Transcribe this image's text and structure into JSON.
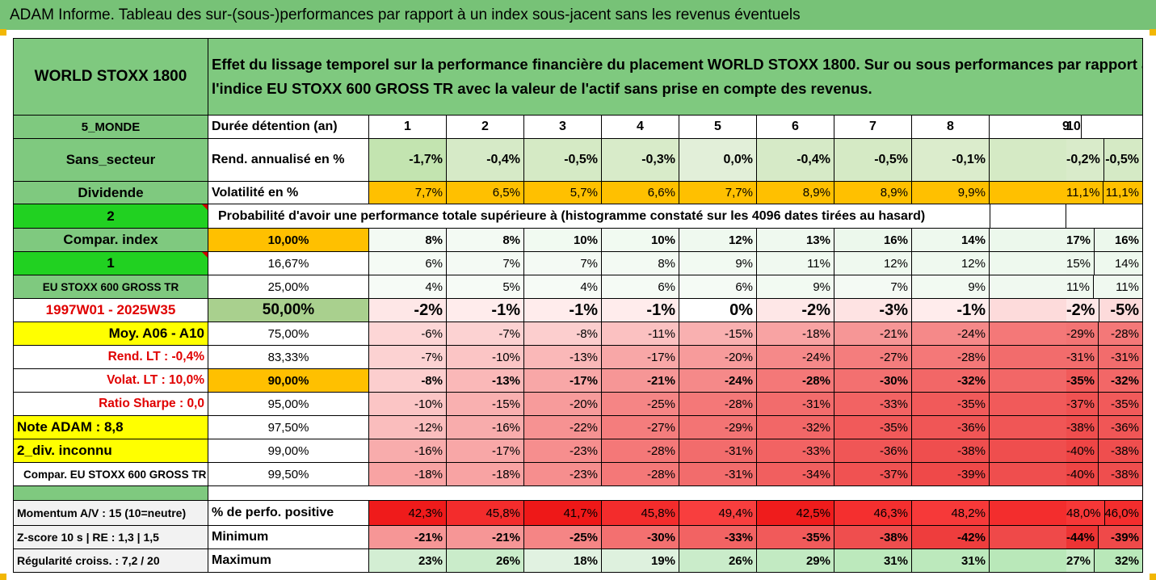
{
  "title": "ADAM Informe. Tableau des sur-(sous-)performances par rapport à un index sous-jacent sans les revenus éventuels",
  "header": {
    "asset_name": "WORLD STOXX 1800",
    "description_line1": "Effet du lissage temporel sur la performance financière du placement WORLD STOXX 1800. Sur ou sous performances par rapport à",
    "description_line2": "l'indice EU STOXX 600 GROSS TR avec la valeur de l'actif sans prise en compte des revenus."
  },
  "left_panel": {
    "zone": "5_MONDE",
    "sector": "Sans_secteur",
    "dividend": "Dividende",
    "option_value": "2",
    "compar_index": "Compar. index",
    "compar_value": "1",
    "index_name": "EU STOXX 600 GROSS TR",
    "period": "1997W01 - 2025W35",
    "avg": "Moy. A06 - A10",
    "rend_lt": "Rend. LT :   -0,4%",
    "volat_lt": "Volat. LT :   10,0%",
    "sharpe": "Ratio Sharpe :   0,0",
    "note": "Note ADAM : 8,8",
    "div_status": "2_div. inconnu",
    "compar_full": "Compar. EU STOXX 600 GROSS TR",
    "momentum": "Momentum A/V : 15 (10=neutre)",
    "zscore": "Z-score 10 s  |  RE : 1,3  |  1,5",
    "regularity": "Régularité croiss. : 7,2 / 20"
  },
  "labels": {
    "duration": "Durée détention (an)",
    "rend": "Rend. annualisé en %",
    "volat": "Volatilité en %",
    "prob": "Probabilité d'avoir une performance totale supérieure à (histogramme constaté sur les 4096 dates tirées au hasard)",
    "pos_perf": "% de perfo. positive",
    "minimum": "Minimum",
    "maximum": "Maximum"
  },
  "years": [
    "1",
    "2",
    "3",
    "4",
    "5",
    "6",
    "7",
    "8",
    "9",
    "10"
  ],
  "rend": [
    "-1,7%",
    "-0,4%",
    "-0,5%",
    "-0,3%",
    "0,0%",
    "-0,4%",
    "-0,5%",
    "-0,1%",
    "-0,5%",
    "-0,2%"
  ],
  "volat": [
    "7,7%",
    "6,5%",
    "5,7%",
    "6,6%",
    "7,7%",
    "8,9%",
    "8,9%",
    "9,9%",
    "11,1%",
    "11,1%"
  ],
  "percentiles": [
    "10,00%",
    "16,67%",
    "25,00%",
    "50,00%",
    "75,00%",
    "83,33%",
    "90,00%",
    "95,00%",
    "97,50%",
    "99,00%",
    "99,50%"
  ],
  "perf_rows": [
    [
      "8%",
      "8%",
      "10%",
      "10%",
      "12%",
      "13%",
      "16%",
      "14%",
      "16%",
      "17%"
    ],
    [
      "6%",
      "7%",
      "7%",
      "8%",
      "9%",
      "11%",
      "12%",
      "12%",
      "14%",
      "15%"
    ],
    [
      "4%",
      "5%",
      "4%",
      "6%",
      "6%",
      "9%",
      "7%",
      "9%",
      "11%",
      "11%"
    ],
    [
      "-2%",
      "-1%",
      "-1%",
      "-1%",
      "0%",
      "-2%",
      "-3%",
      "-1%",
      "-5%",
      "-2%"
    ],
    [
      "-6%",
      "-7%",
      "-8%",
      "-11%",
      "-15%",
      "-18%",
      "-21%",
      "-24%",
      "-28%",
      "-29%"
    ],
    [
      "-7%",
      "-10%",
      "-13%",
      "-17%",
      "-20%",
      "-24%",
      "-27%",
      "-28%",
      "-31%",
      "-31%"
    ],
    [
      "-8%",
      "-13%",
      "-17%",
      "-21%",
      "-24%",
      "-28%",
      "-30%",
      "-32%",
      "-32%",
      "-35%"
    ],
    [
      "-10%",
      "-15%",
      "-20%",
      "-25%",
      "-28%",
      "-31%",
      "-33%",
      "-35%",
      "-35%",
      "-37%"
    ],
    [
      "-12%",
      "-16%",
      "-22%",
      "-27%",
      "-29%",
      "-32%",
      "-35%",
      "-36%",
      "-36%",
      "-38%"
    ],
    [
      "-16%",
      "-17%",
      "-23%",
      "-28%",
      "-31%",
      "-33%",
      "-36%",
      "-38%",
      "-38%",
      "-40%"
    ],
    [
      "-18%",
      "-18%",
      "-23%",
      "-28%",
      "-31%",
      "-34%",
      "-37%",
      "-39%",
      "-38%",
      "-40%"
    ]
  ],
  "pos_perf": [
    "42,3%",
    "45,8%",
    "41,7%",
    "45,8%",
    "49,4%",
    "42,5%",
    "46,3%",
    "48,2%",
    "46,0%",
    "48,0%"
  ],
  "minimum": [
    "-21%",
    "-21%",
    "-25%",
    "-30%",
    "-33%",
    "-35%",
    "-38%",
    "-42%",
    "-39%",
    "-44%"
  ],
  "maximum": [
    "23%",
    "26%",
    "18%",
    "19%",
    "26%",
    "29%",
    "31%",
    "31%",
    "32%",
    "27%"
  ],
  "colors": {
    "title_green": "#77c277",
    "header_green": "#7fc97f",
    "bright_green": "#21d121",
    "yellow": "#ffff00",
    "orange": "#ffc000",
    "red_text": "#e00000",
    "sage": "#a9d08e",
    "grey": "#f2f2f2"
  }
}
